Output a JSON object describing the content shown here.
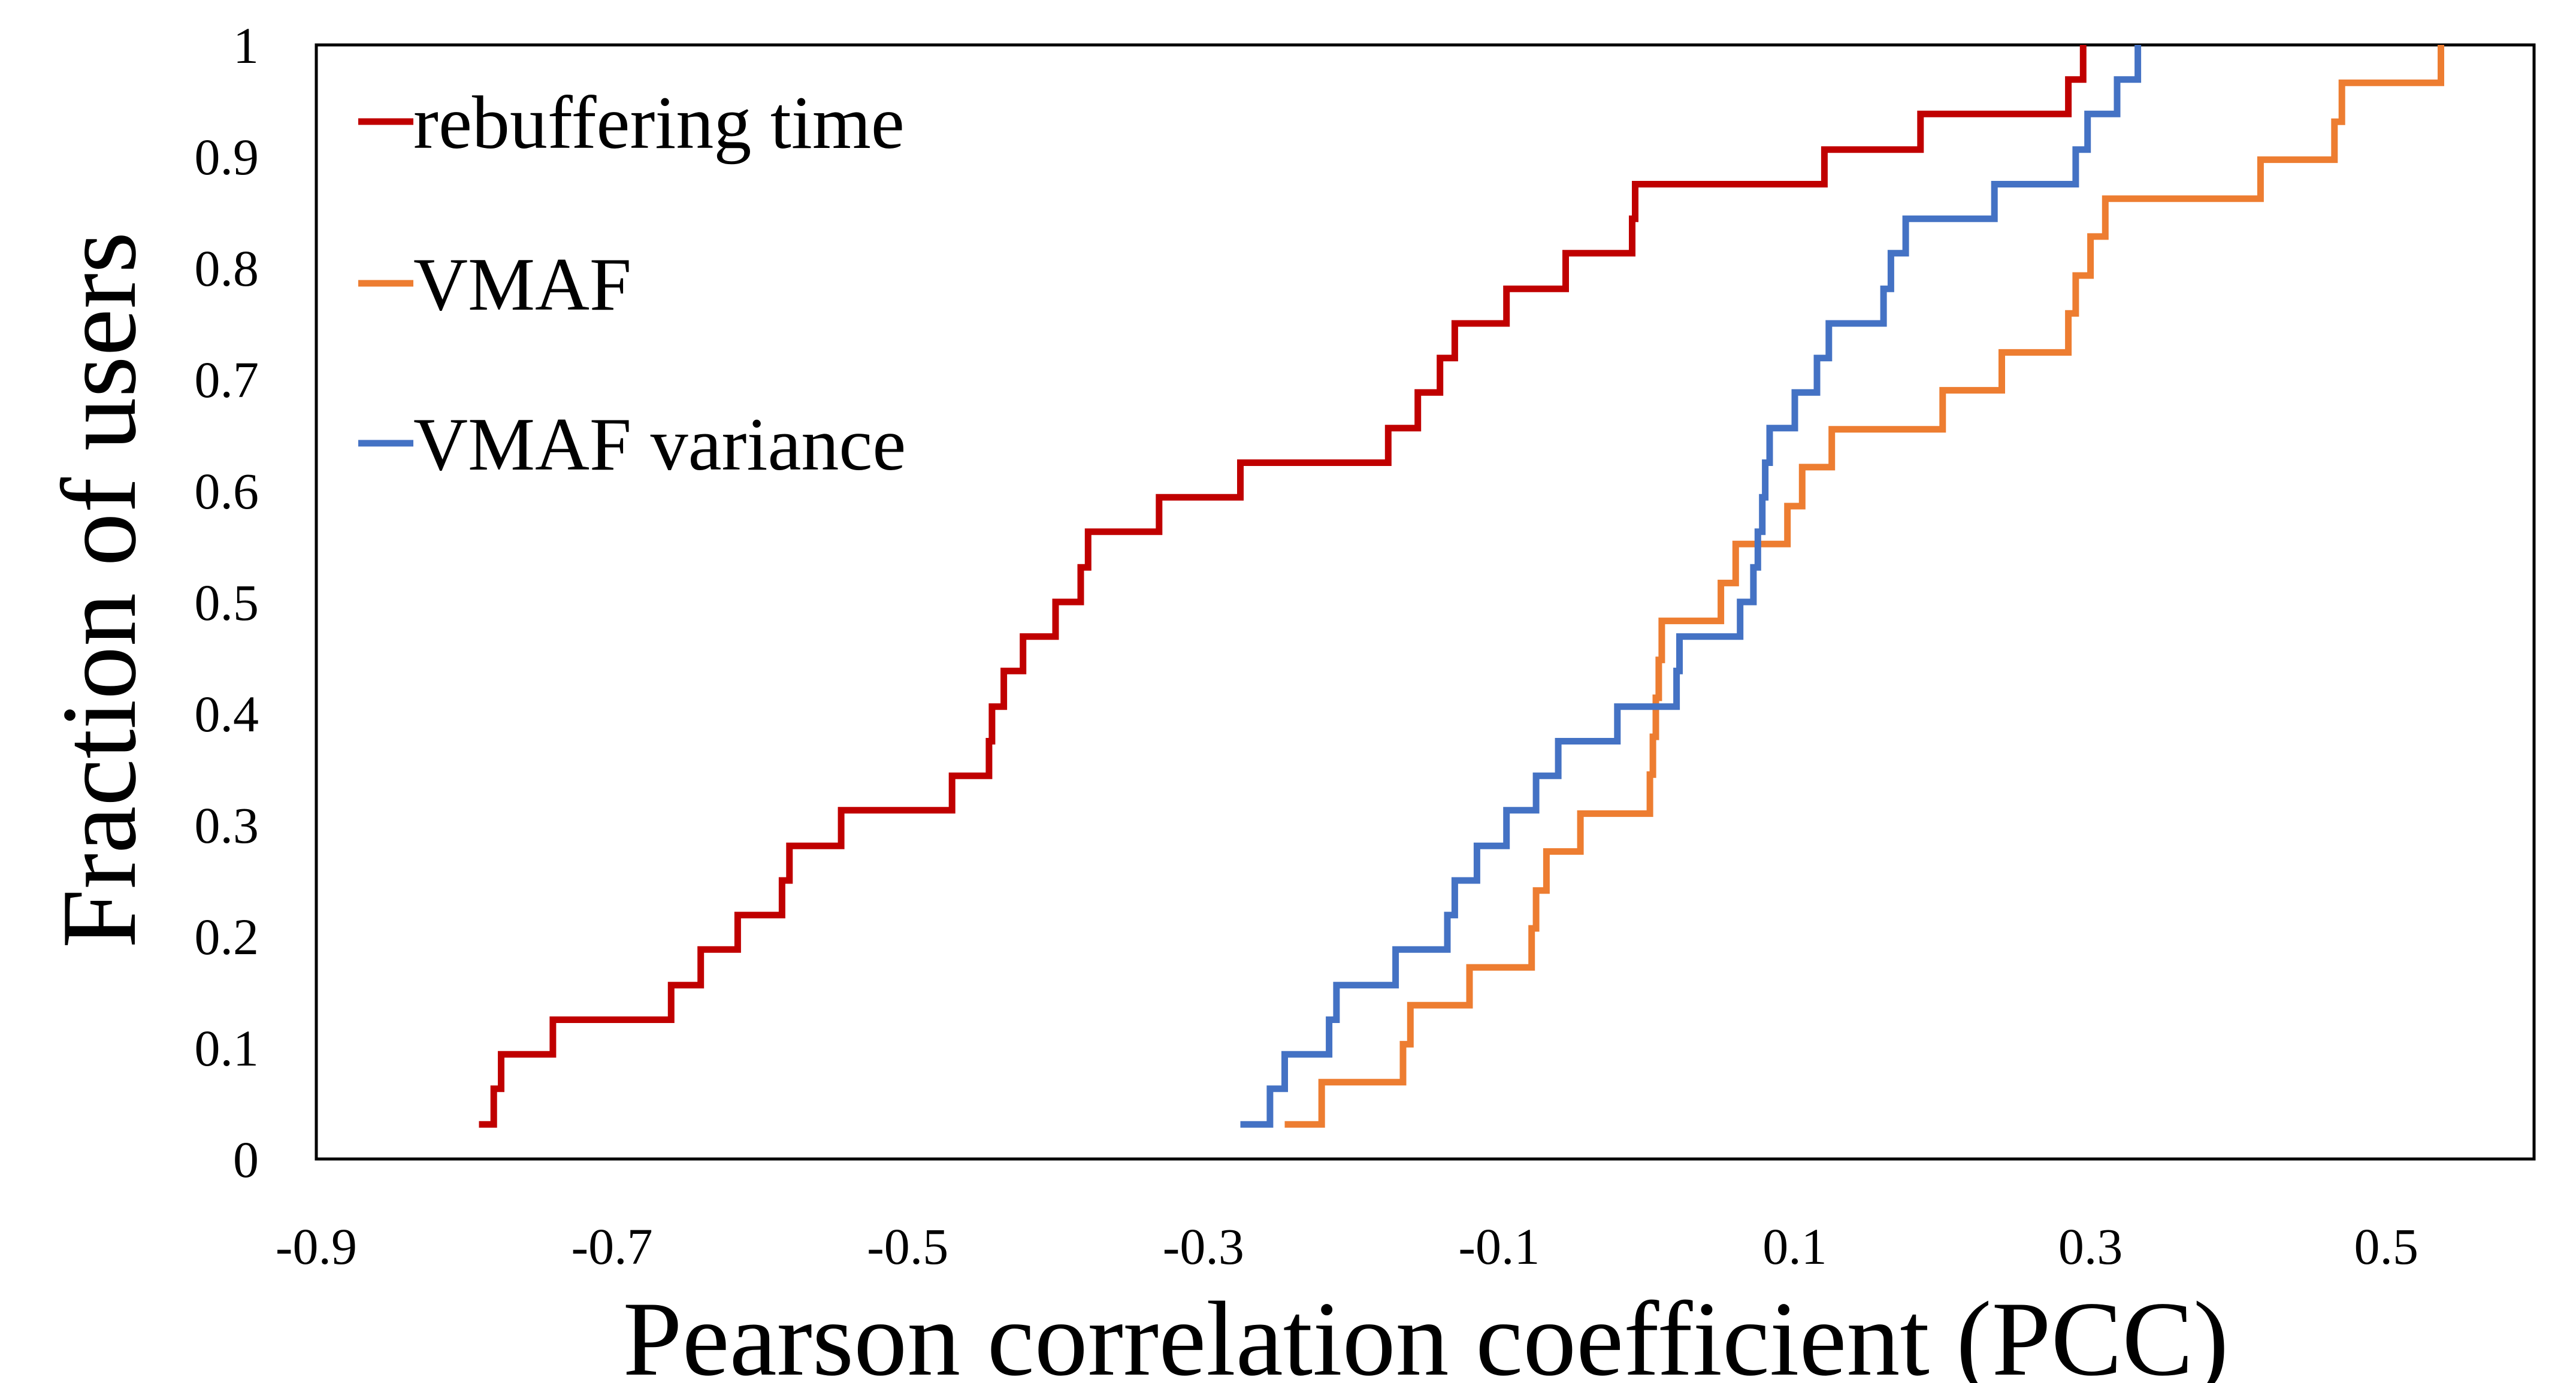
{
  "chart_data": {
    "type": "line",
    "title": "",
    "xlabel": "Pearson correlation coefficient (PCC)",
    "ylabel": "Fraction of users",
    "xlim": [
      -0.9,
      0.6
    ],
    "ylim": [
      0,
      1
    ],
    "x_ticks": [
      "-0.9",
      "-0.7",
      "-0.5",
      "-0.3",
      "-0.1",
      "0.1",
      "0.3",
      "0.5"
    ],
    "y_ticks": [
      "0",
      "0.1",
      "0.2",
      "0.3",
      "0.4",
      "0.5",
      "0.6",
      "0.7",
      "0.8",
      "0.9",
      "1"
    ],
    "grid": false,
    "legend_position": "top-left",
    "series": [
      {
        "name": "rebuffering time",
        "color": "#C00000",
        "step": true,
        "points": [
          [
            -0.79,
            0.031
          ],
          [
            -0.78,
            0.031
          ],
          [
            -0.78,
            0.063
          ],
          [
            -0.775,
            0.063
          ],
          [
            -0.775,
            0.094
          ],
          [
            -0.74,
            0.094
          ],
          [
            -0.74,
            0.125
          ],
          [
            -0.66,
            0.125
          ],
          [
            -0.66,
            0.156
          ],
          [
            -0.64,
            0.156
          ],
          [
            -0.64,
            0.188
          ],
          [
            -0.615,
            0.188
          ],
          [
            -0.615,
            0.219
          ],
          [
            -0.585,
            0.219
          ],
          [
            -0.585,
            0.25
          ],
          [
            -0.58,
            0.25
          ],
          [
            -0.58,
            0.281
          ],
          [
            -0.545,
            0.281
          ],
          [
            -0.545,
            0.313
          ],
          [
            -0.47,
            0.313
          ],
          [
            -0.47,
            0.344
          ],
          [
            -0.445,
            0.344
          ],
          [
            -0.445,
            0.375
          ],
          [
            -0.443,
            0.375
          ],
          [
            -0.443,
            0.406
          ],
          [
            -0.435,
            0.406
          ],
          [
            -0.435,
            0.438
          ],
          [
            -0.422,
            0.438
          ],
          [
            -0.422,
            0.469
          ],
          [
            -0.4,
            0.469
          ],
          [
            -0.4,
            0.5
          ],
          [
            -0.383,
            0.5
          ],
          [
            -0.383,
            0.531
          ],
          [
            -0.378,
            0.531
          ],
          [
            -0.378,
            0.563
          ],
          [
            -0.33,
            0.563
          ],
          [
            -0.33,
            0.594
          ],
          [
            -0.275,
            0.594
          ],
          [
            -0.275,
            0.625
          ],
          [
            -0.175,
            0.625
          ],
          [
            -0.175,
            0.656
          ],
          [
            -0.155,
            0.656
          ],
          [
            -0.155,
            0.688
          ],
          [
            -0.14,
            0.688
          ],
          [
            -0.14,
            0.719
          ],
          [
            -0.13,
            0.719
          ],
          [
            -0.13,
            0.75
          ],
          [
            -0.095,
            0.75
          ],
          [
            -0.095,
            0.781
          ],
          [
            -0.055,
            0.781
          ],
          [
            -0.055,
            0.813
          ],
          [
            -0.01,
            0.813
          ],
          [
            -0.01,
            0.844
          ],
          [
            -0.008,
            0.844
          ],
          [
            -0.008,
            0.875
          ],
          [
            0.12,
            0.875
          ],
          [
            0.12,
            0.906
          ],
          [
            0.185,
            0.906
          ],
          [
            0.185,
            0.938
          ],
          [
            0.285,
            0.938
          ],
          [
            0.285,
            0.969
          ],
          [
            0.295,
            0.969
          ],
          [
            0.295,
            1.0
          ]
        ]
      },
      {
        "name": "VMAF",
        "color": "#ED7D31",
        "step": true,
        "points": [
          [
            -0.245,
            0.031
          ],
          [
            -0.22,
            0.031
          ],
          [
            -0.22,
            0.069
          ],
          [
            -0.165,
            0.069
          ],
          [
            -0.165,
            0.103
          ],
          [
            -0.16,
            0.103
          ],
          [
            -0.16,
            0.138
          ],
          [
            -0.12,
            0.138
          ],
          [
            -0.12,
            0.172
          ],
          [
            -0.078,
            0.172
          ],
          [
            -0.078,
            0.207
          ],
          [
            -0.075,
            0.207
          ],
          [
            -0.075,
            0.241
          ],
          [
            -0.068,
            0.241
          ],
          [
            -0.068,
            0.276
          ],
          [
            -0.045,
            0.276
          ],
          [
            -0.045,
            0.31
          ],
          [
            0.002,
            0.31
          ],
          [
            0.002,
            0.345
          ],
          [
            0.004,
            0.345
          ],
          [
            0.004,
            0.379
          ],
          [
            0.006,
            0.379
          ],
          [
            0.006,
            0.414
          ],
          [
            0.008,
            0.414
          ],
          [
            0.008,
            0.448
          ],
          [
            0.01,
            0.448
          ],
          [
            0.01,
            0.483
          ],
          [
            0.05,
            0.483
          ],
          [
            0.05,
            0.517
          ],
          [
            0.06,
            0.517
          ],
          [
            0.06,
            0.552
          ],
          [
            0.095,
            0.552
          ],
          [
            0.095,
            0.586
          ],
          [
            0.105,
            0.586
          ],
          [
            0.105,
            0.621
          ],
          [
            0.125,
            0.621
          ],
          [
            0.125,
            0.655
          ],
          [
            0.2,
            0.655
          ],
          [
            0.2,
            0.69
          ],
          [
            0.24,
            0.69
          ],
          [
            0.24,
            0.724
          ],
          [
            0.285,
            0.724
          ],
          [
            0.285,
            0.759
          ],
          [
            0.29,
            0.759
          ],
          [
            0.29,
            0.793
          ],
          [
            0.3,
            0.793
          ],
          [
            0.3,
            0.828
          ],
          [
            0.31,
            0.828
          ],
          [
            0.31,
            0.862
          ],
          [
            0.415,
            0.862
          ],
          [
            0.415,
            0.897
          ],
          [
            0.465,
            0.897
          ],
          [
            0.465,
            0.931
          ],
          [
            0.47,
            0.931
          ],
          [
            0.47,
            0.966
          ],
          [
            0.537,
            0.966
          ],
          [
            0.537,
            1.0
          ]
        ]
      },
      {
        "name": "VMAF variance",
        "color": "#4472C4",
        "step": true,
        "points": [
          [
            -0.275,
            0.031
          ],
          [
            -0.255,
            0.031
          ],
          [
            -0.255,
            0.063
          ],
          [
            -0.245,
            0.063
          ],
          [
            -0.245,
            0.094
          ],
          [
            -0.215,
            0.094
          ],
          [
            -0.215,
            0.125
          ],
          [
            -0.21,
            0.125
          ],
          [
            -0.21,
            0.156
          ],
          [
            -0.17,
            0.156
          ],
          [
            -0.17,
            0.188
          ],
          [
            -0.135,
            0.188
          ],
          [
            -0.135,
            0.219
          ],
          [
            -0.13,
            0.219
          ],
          [
            -0.13,
            0.25
          ],
          [
            -0.115,
            0.25
          ],
          [
            -0.115,
            0.281
          ],
          [
            -0.095,
            0.281
          ],
          [
            -0.095,
            0.313
          ],
          [
            -0.075,
            0.313
          ],
          [
            -0.075,
            0.344
          ],
          [
            -0.06,
            0.344
          ],
          [
            -0.06,
            0.375
          ],
          [
            -0.02,
            0.375
          ],
          [
            -0.02,
            0.406
          ],
          [
            0.02,
            0.406
          ],
          [
            0.02,
            0.438
          ],
          [
            0.022,
            0.438
          ],
          [
            0.022,
            0.469
          ],
          [
            0.063,
            0.469
          ],
          [
            0.063,
            0.5
          ],
          [
            0.072,
            0.5
          ],
          [
            0.072,
            0.531
          ],
          [
            0.075,
            0.531
          ],
          [
            0.075,
            0.563
          ],
          [
            0.078,
            0.563
          ],
          [
            0.078,
            0.594
          ],
          [
            0.08,
            0.594
          ],
          [
            0.08,
            0.625
          ],
          [
            0.083,
            0.625
          ],
          [
            0.083,
            0.656
          ],
          [
            0.1,
            0.656
          ],
          [
            0.1,
            0.688
          ],
          [
            0.115,
            0.688
          ],
          [
            0.115,
            0.719
          ],
          [
            0.123,
            0.719
          ],
          [
            0.123,
            0.75
          ],
          [
            0.16,
            0.75
          ],
          [
            0.16,
            0.781
          ],
          [
            0.165,
            0.781
          ],
          [
            0.165,
            0.813
          ],
          [
            0.175,
            0.813
          ],
          [
            0.175,
            0.844
          ],
          [
            0.235,
            0.844
          ],
          [
            0.235,
            0.875
          ],
          [
            0.29,
            0.875
          ],
          [
            0.29,
            0.906
          ],
          [
            0.298,
            0.906
          ],
          [
            0.298,
            0.938
          ],
          [
            0.318,
            0.938
          ],
          [
            0.318,
            0.969
          ],
          [
            0.332,
            0.969
          ],
          [
            0.332,
            1.0
          ]
        ]
      }
    ]
  }
}
